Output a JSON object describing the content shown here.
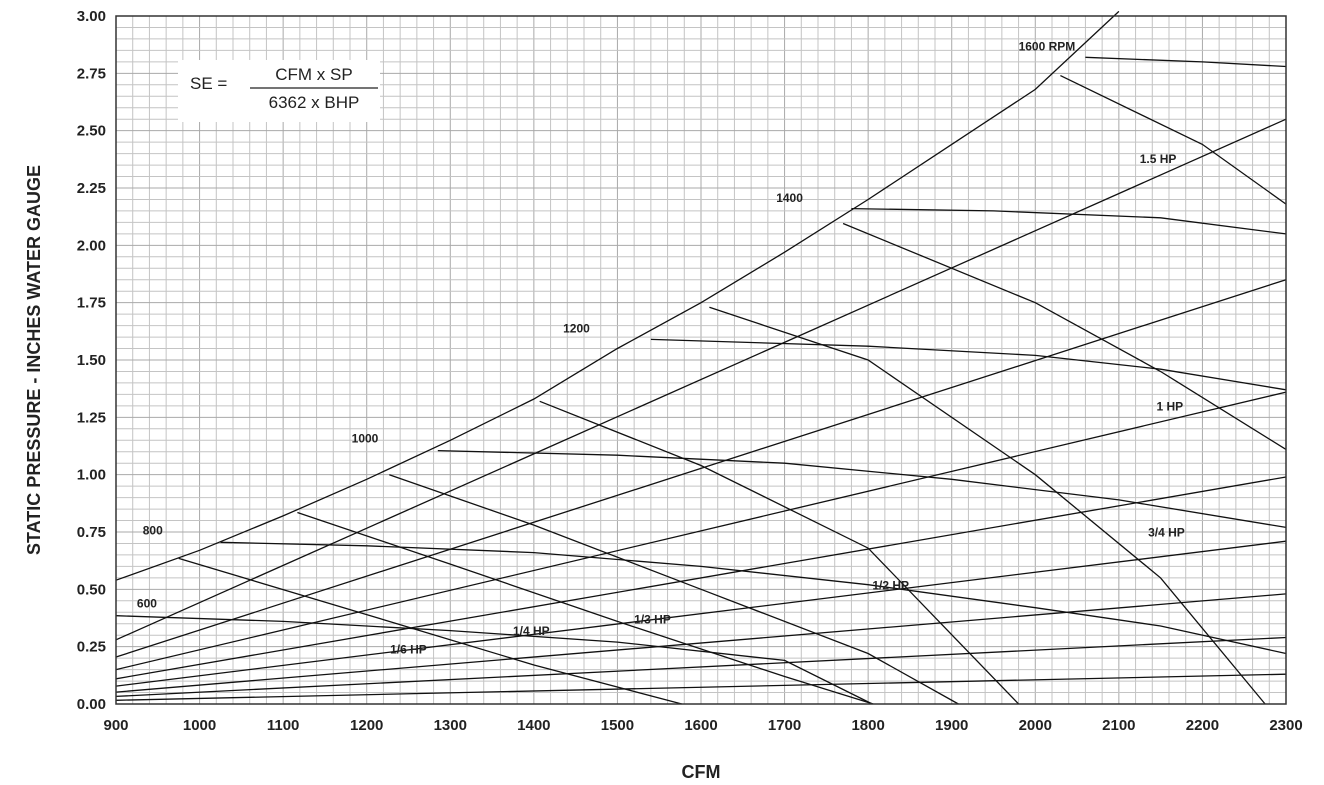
{
  "chart_data": {
    "type": "line",
    "title": "",
    "xlabel": "CFM",
    "ylabel": "STATIC PRESSURE - INCHES WATER GAUGE",
    "xlim": [
      900,
      2300
    ],
    "ylim": [
      0,
      3.0
    ],
    "x_ticks": [
      "900",
      "1000",
      "1100",
      "1200",
      "1300",
      "1400",
      "1500",
      "1600",
      "1700",
      "1800",
      "1900",
      "2000",
      "2100",
      "2200",
      "2300"
    ],
    "y_ticks": [
      "0.00",
      "0.25",
      "0.50",
      "0.75",
      "1.00",
      "1.25",
      "1.50",
      "1.75",
      "2.00",
      "2.25",
      "2.50",
      "2.75",
      "3.00"
    ],
    "grid": true,
    "formula": {
      "lhs": "SE =",
      "numerator": "CFM x SP",
      "denominator": "6362 x BHP"
    },
    "max_efficiency_boundary": [
      [
        900,
        0.54
      ],
      [
        1000,
        0.67
      ],
      [
        1100,
        0.82
      ],
      [
        1200,
        0.98
      ],
      [
        1300,
        1.15
      ],
      [
        1400,
        1.33
      ],
      [
        1500,
        1.55
      ],
      [
        1600,
        1.75
      ],
      [
        1700,
        1.97
      ],
      [
        1800,
        2.2
      ],
      [
        1900,
        2.44
      ],
      [
        2000,
        2.68
      ],
      [
        2100,
        3.02
      ]
    ],
    "system_curves": [
      [
        [
          900,
          0.28
        ],
        [
          2300,
          2.55
        ]
      ],
      [
        [
          900,
          0.205
        ],
        [
          2300,
          1.85
        ]
      ],
      [
        [
          900,
          0.15
        ],
        [
          2300,
          1.36
        ]
      ],
      [
        [
          900,
          0.11
        ],
        [
          2300,
          0.99
        ]
      ],
      [
        [
          900,
          0.078
        ],
        [
          2300,
          0.71
        ]
      ],
      [
        [
          900,
          0.052
        ],
        [
          2300,
          0.48
        ]
      ],
      [
        [
          900,
          0.033
        ],
        [
          2300,
          0.29
        ]
      ],
      [
        [
          900,
          0.016
        ],
        [
          2300,
          0.13
        ]
      ]
    ],
    "rpm_curves": [
      {
        "label": "600",
        "points": [
          [
            900,
            0.385
          ],
          [
            1100,
            0.36
          ],
          [
            1300,
            0.32
          ],
          [
            1500,
            0.27
          ],
          [
            1700,
            0.19
          ],
          [
            1805,
            0.0
          ]
        ]
      },
      {
        "label": "800",
        "points": [
          [
            1025,
            0.705
          ],
          [
            1200,
            0.69
          ],
          [
            1400,
            0.66
          ],
          [
            1600,
            0.6
          ],
          [
            1800,
            0.52
          ],
          [
            2000,
            0.42
          ],
          [
            2150,
            0.34
          ],
          [
            2300,
            0.22
          ]
        ]
      },
      {
        "label": "1000",
        "points": [
          [
            1285,
            1.105
          ],
          [
            1500,
            1.085
          ],
          [
            1700,
            1.05
          ],
          [
            1900,
            0.98
          ],
          [
            2100,
            0.89
          ],
          [
            2300,
            0.77
          ]
        ]
      },
      {
        "label": "1200",
        "points": [
          [
            1540,
            1.59
          ],
          [
            1800,
            1.56
          ],
          [
            2000,
            1.52
          ],
          [
            2150,
            1.46
          ],
          [
            2300,
            1.37
          ]
        ]
      },
      {
        "label": "1400",
        "points": [
          [
            1780,
            2.16
          ],
          [
            1950,
            2.15
          ],
          [
            2150,
            2.12
          ],
          [
            2300,
            2.05
          ]
        ]
      },
      {
        "label": "1600 RPM",
        "points": [
          [
            2060,
            2.82
          ],
          [
            2200,
            2.8
          ],
          [
            2300,
            2.78
          ]
        ]
      }
    ],
    "hp_curves": [
      {
        "label": "1/6 HP",
        "points": [
          [
            975,
            0.635
          ],
          [
            1200,
            0.39
          ],
          [
            1400,
            0.17
          ],
          [
            1577,
            0.0
          ]
        ]
      },
      {
        "label": "1/4 HP",
        "points": [
          [
            1117,
            0.835
          ],
          [
            1300,
            0.61
          ],
          [
            1500,
            0.36
          ],
          [
            1700,
            0.12
          ],
          [
            1806,
            0.0
          ]
        ]
      },
      {
        "label": "1/3 HP",
        "points": [
          [
            1227,
            1.0
          ],
          [
            1400,
            0.78
          ],
          [
            1600,
            0.5
          ],
          [
            1800,
            0.22
          ],
          [
            1908,
            0.0
          ]
        ]
      },
      {
        "label": "1/2 HP",
        "points": [
          [
            1407,
            1.32
          ],
          [
            1600,
            1.04
          ],
          [
            1800,
            0.68
          ],
          [
            1980,
            0.0
          ]
        ]
      },
      {
        "label": "1 HP",
        "points": [
          [
            1610,
            1.73
          ],
          [
            1800,
            1.5
          ],
          [
            2000,
            1.0
          ],
          [
            2150,
            0.55
          ],
          [
            2275,
            0.0
          ]
        ]
      },
      {
        "label": "3/4 HP",
        "points": [
          [
            1770,
            2.095
          ],
          [
            2000,
            1.75
          ],
          [
            2150,
            1.45
          ],
          [
            2300,
            1.11
          ]
        ]
      },
      {
        "label": "1.5 HP",
        "points": [
          [
            2030,
            2.74
          ],
          [
            2200,
            2.44
          ],
          [
            2300,
            2.18
          ]
        ]
      }
    ]
  }
}
